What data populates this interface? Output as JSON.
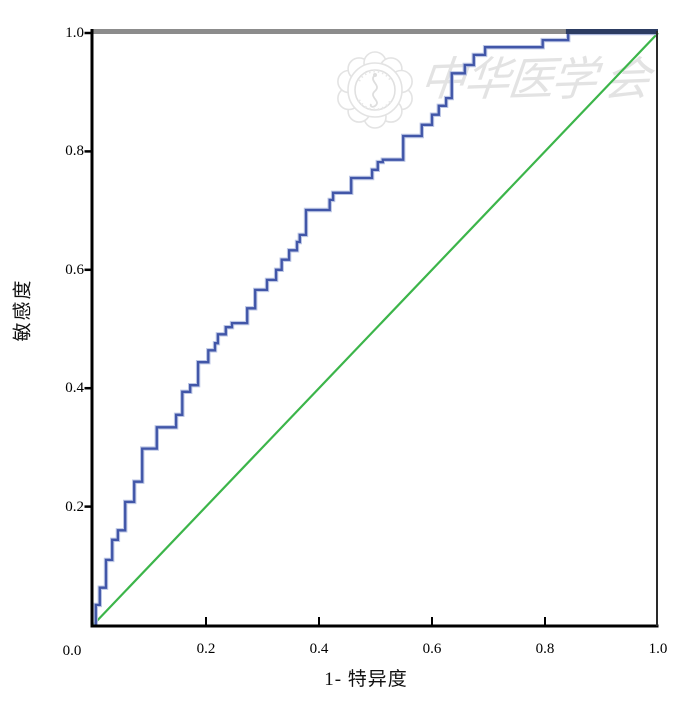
{
  "watermark": {
    "logo": "chinese-medical-association-badge",
    "text": "中华医学会",
    "chars": [
      "中",
      "华",
      "医",
      "学",
      "会"
    ],
    "color": "#e3e3e3"
  },
  "axes": {
    "x_title": "1- 特异度",
    "y_title": "敏感度",
    "origin_label": "0.0",
    "x_tick_labels": [
      "0.2",
      "0.4",
      "0.6",
      "0.8",
      "1.0"
    ],
    "y_tick_labels": [
      "1.0",
      "0.8",
      "0.6",
      "0.4",
      "0.2"
    ]
  },
  "chart_data": {
    "type": "line",
    "subtype": "roc-curve",
    "title": "",
    "xlabel": "1- 特异度",
    "ylabel": "敏感度",
    "xlim": [
      0,
      1
    ],
    "ylim": [
      0,
      1
    ],
    "x_ticks": [
      0.0,
      0.2,
      0.4,
      0.6,
      0.8,
      1.0
    ],
    "y_ticks": [
      0.0,
      0.2,
      0.4,
      0.6,
      0.8,
      1.0
    ],
    "grid": false,
    "legend": false,
    "frame_color": "#000000",
    "series": [
      {
        "name": "ROC curve",
        "draw": "step",
        "color": "#4156a8",
        "halo_color": "#b0bce0",
        "points": [
          [
            0.005,
            0.0
          ],
          [
            0.005,
            0.034
          ],
          [
            0.012,
            0.034
          ],
          [
            0.012,
            0.063
          ],
          [
            0.023,
            0.063
          ],
          [
            0.023,
            0.11
          ],
          [
            0.034,
            0.11
          ],
          [
            0.034,
            0.144
          ],
          [
            0.044,
            0.144
          ],
          [
            0.044,
            0.16
          ],
          [
            0.057,
            0.16
          ],
          [
            0.057,
            0.208
          ],
          [
            0.073,
            0.208
          ],
          [
            0.073,
            0.242
          ],
          [
            0.087,
            0.242
          ],
          [
            0.087,
            0.298
          ],
          [
            0.113,
            0.298
          ],
          [
            0.113,
            0.334
          ],
          [
            0.147,
            0.334
          ],
          [
            0.147,
            0.355
          ],
          [
            0.158,
            0.355
          ],
          [
            0.158,
            0.394
          ],
          [
            0.172,
            0.394
          ],
          [
            0.172,
            0.405
          ],
          [
            0.186,
            0.405
          ],
          [
            0.186,
            0.444
          ],
          [
            0.204,
            0.444
          ],
          [
            0.204,
            0.464
          ],
          [
            0.216,
            0.464
          ],
          [
            0.216,
            0.476
          ],
          [
            0.221,
            0.476
          ],
          [
            0.221,
            0.491
          ],
          [
            0.235,
            0.491
          ],
          [
            0.235,
            0.503
          ],
          [
            0.246,
            0.503
          ],
          [
            0.246,
            0.51
          ],
          [
            0.273,
            0.51
          ],
          [
            0.273,
            0.535
          ],
          [
            0.287,
            0.535
          ],
          [
            0.287,
            0.566
          ],
          [
            0.308,
            0.566
          ],
          [
            0.308,
            0.583
          ],
          [
            0.324,
            0.583
          ],
          [
            0.324,
            0.6
          ],
          [
            0.334,
            0.6
          ],
          [
            0.334,
            0.617
          ],
          [
            0.347,
            0.617
          ],
          [
            0.347,
            0.633
          ],
          [
            0.361,
            0.633
          ],
          [
            0.361,
            0.647
          ],
          [
            0.366,
            0.647
          ],
          [
            0.366,
            0.659
          ],
          [
            0.377,
            0.659
          ],
          [
            0.377,
            0.701
          ],
          [
            0.419,
            0.701
          ],
          [
            0.419,
            0.718
          ],
          [
            0.425,
            0.718
          ],
          [
            0.425,
            0.73
          ],
          [
            0.457,
            0.73
          ],
          [
            0.457,
            0.755
          ],
          [
            0.494,
            0.755
          ],
          [
            0.494,
            0.769
          ],
          [
            0.504,
            0.769
          ],
          [
            0.504,
            0.782
          ],
          [
            0.513,
            0.782
          ],
          [
            0.513,
            0.786
          ],
          [
            0.549,
            0.786
          ],
          [
            0.549,
            0.826
          ],
          [
            0.582,
            0.826
          ],
          [
            0.582,
            0.845
          ],
          [
            0.6,
            0.845
          ],
          [
            0.6,
            0.862
          ],
          [
            0.612,
            0.862
          ],
          [
            0.612,
            0.877
          ],
          [
            0.625,
            0.877
          ],
          [
            0.625,
            0.89
          ],
          [
            0.635,
            0.89
          ],
          [
            0.635,
            0.932
          ],
          [
            0.658,
            0.932
          ],
          [
            0.658,
            0.946
          ],
          [
            0.674,
            0.946
          ],
          [
            0.674,
            0.963
          ],
          [
            0.694,
            0.963
          ],
          [
            0.694,
            0.976
          ],
          [
            0.796,
            0.976
          ],
          [
            0.796,
            0.988
          ],
          [
            0.841,
            0.988
          ],
          [
            0.841,
            1.0
          ],
          [
            1.0,
            1.0
          ]
        ]
      },
      {
        "name": "reference diagonal",
        "draw": "line",
        "color": "#3cb54a",
        "points": [
          [
            0,
            0
          ],
          [
            1,
            1
          ]
        ]
      },
      {
        "name": "top reference line",
        "draw": "line",
        "color": "#8c8c8c",
        "overlap_color": "#2c3c62",
        "overlap_from_x": 0.837,
        "points": [
          [
            0,
            1
          ],
          [
            1,
            1
          ]
        ]
      }
    ]
  }
}
